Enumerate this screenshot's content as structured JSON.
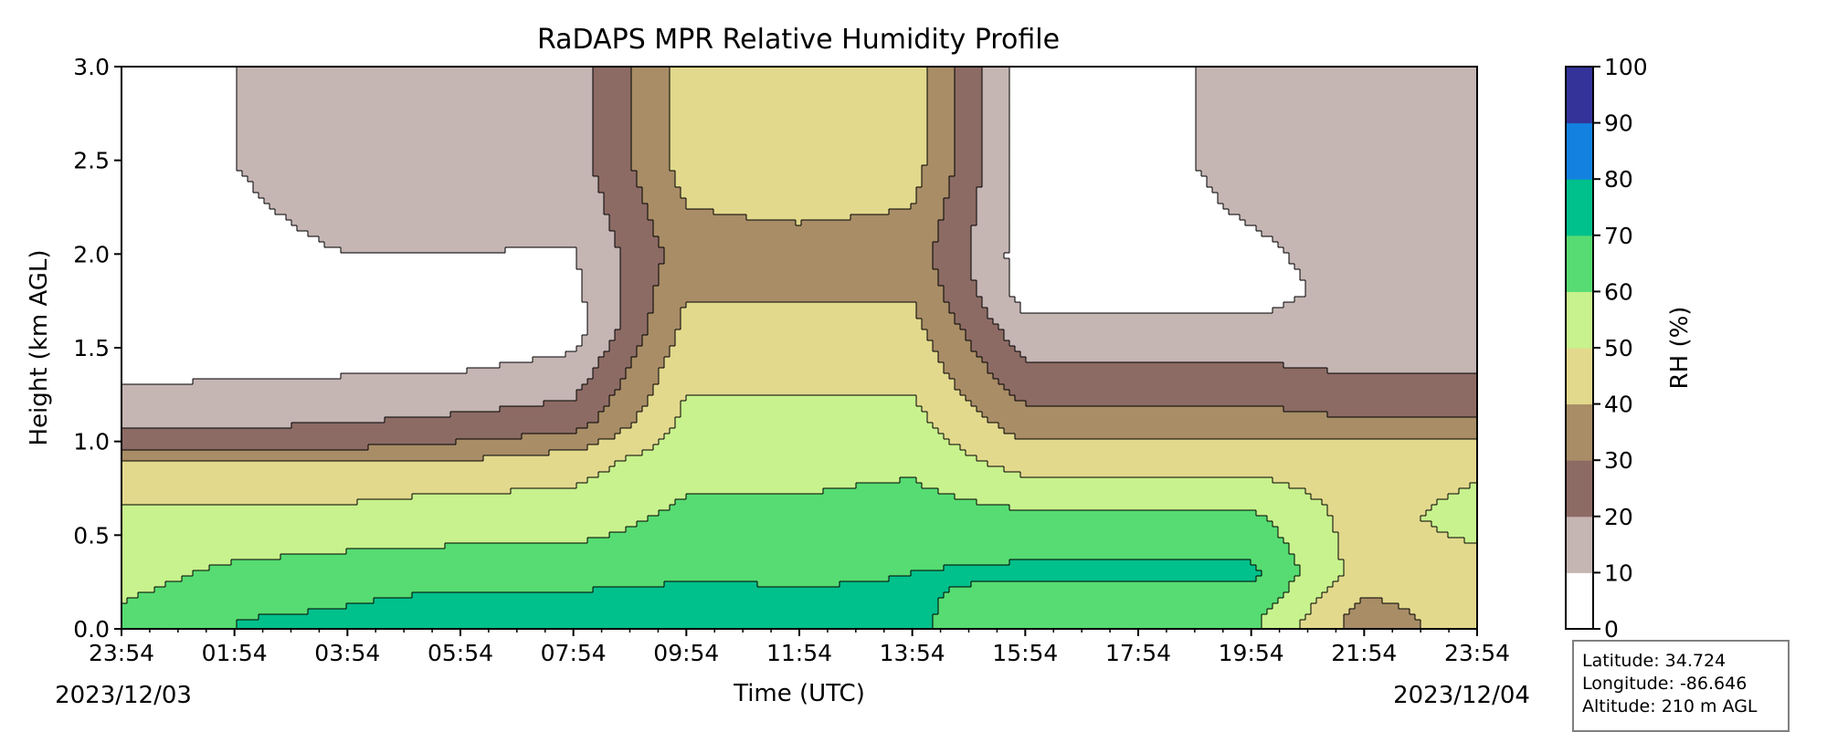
{
  "chart_data": {
    "type": "filled-contour",
    "title": "RaDAPS MPR Relative Humidity Profile",
    "xlabel": "Time (UTC)",
    "ylabel": "Height (km AGL)",
    "x_tick_labels": [
      "23:54",
      "01:54",
      "03:54",
      "05:54",
      "07:54",
      "09:54",
      "11:54",
      "13:54",
      "15:54",
      "17:54",
      "19:54",
      "21:54",
      "23:54"
    ],
    "x_start_date": "2023/12/03",
    "x_end_date": "2023/12/04",
    "ylim": [
      0.0,
      3.0
    ],
    "y_ticks": [
      "0.0",
      "0.5",
      "1.0",
      "1.5",
      "2.0",
      "2.5",
      "3.0"
    ],
    "colorbar": {
      "label": "RH (%)",
      "levels": [
        0,
        10,
        20,
        30,
        40,
        50,
        60,
        70,
        80,
        90,
        100
      ],
      "colors": [
        "#ffffff",
        "#c5b5b3",
        "#8c6b64",
        "#a88d66",
        "#e2d98d",
        "#c8f28d",
        "#56dc72",
        "#00c08b",
        "#1281e0",
        "#343399"
      ]
    },
    "rh_fields": [
      {
        "time": "23:54",
        "heights_km": [
          0.05,
          0.3,
          0.6,
          0.85,
          0.93,
          1.0,
          1.12,
          1.5,
          2.5
        ],
        "rh": [
          62,
          56,
          52,
          45,
          35,
          25,
          15,
          5,
          5
        ]
      },
      {
        "time": "01:54",
        "heights_km": [
          0.05,
          0.3,
          0.6,
          0.85,
          0.93,
          1.0,
          1.15,
          1.5,
          2.5
        ],
        "rh": [
          70,
          62,
          52,
          45,
          35,
          25,
          15,
          5,
          10
        ]
      },
      {
        "time": "03:54",
        "heights_km": [
          0.05,
          0.3,
          0.6,
          0.85,
          0.93,
          1.0,
          1.2,
          1.5,
          2.5
        ],
        "rh": [
          72,
          65,
          52,
          45,
          35,
          25,
          15,
          5,
          15
        ]
      },
      {
        "time": "05:54",
        "heights_km": [
          0.05,
          0.3,
          0.6,
          0.85,
          0.95,
          1.05,
          1.25,
          1.5,
          2.5
        ],
        "rh": [
          78,
          65,
          55,
          45,
          35,
          25,
          15,
          5,
          15
        ]
      },
      {
        "time": "07:54",
        "heights_km": [
          0.05,
          0.3,
          0.6,
          0.9,
          1.0,
          1.1,
          1.35,
          1.6,
          2.5
        ],
        "rh": [
          78,
          65,
          55,
          45,
          35,
          25,
          15,
          5,
          15
        ]
      },
      {
        "time": "09:54",
        "heights_km": [
          0.05,
          0.3,
          0.6,
          1.0,
          1.5,
          2.0,
          2.5
        ],
        "rh": [
          78,
          68,
          62,
          55,
          45,
          35,
          45
        ]
      },
      {
        "time": "11:54",
        "heights_km": [
          0.05,
          0.3,
          0.6,
          1.0,
          1.5,
          2.0,
          2.5
        ],
        "rh": [
          75,
          68,
          62,
          55,
          45,
          35,
          50
        ]
      },
      {
        "time": "13:54",
        "heights_km": [
          0.05,
          0.3,
          0.6,
          1.0,
          1.5,
          2.0,
          2.5
        ],
        "rh": [
          72,
          70,
          65,
          55,
          45,
          35,
          45
        ]
      },
      {
        "time": "15:54",
        "heights_km": [
          0.05,
          0.3,
          0.6,
          0.9,
          1.1,
          1.3,
          1.8,
          2.5
        ],
        "rh": [
          62,
          72,
          62,
          45,
          35,
          25,
          5,
          5
        ]
      },
      {
        "time": "17:54",
        "heights_km": [
          0.05,
          0.3,
          0.6,
          0.9,
          1.1,
          1.3,
          1.8,
          2.5
        ],
        "rh": [
          62,
          72,
          62,
          45,
          35,
          25,
          5,
          5
        ]
      },
      {
        "time": "19:54",
        "heights_km": [
          0.05,
          0.3,
          0.6,
          0.9,
          1.1,
          1.3,
          1.8,
          2.5
        ],
        "rh": [
          62,
          72,
          62,
          45,
          35,
          25,
          5,
          15
        ]
      },
      {
        "time": "21:54",
        "heights_km": [
          0.05,
          0.3,
          0.6,
          0.95,
          1.05,
          1.2,
          1.5,
          2.5
        ],
        "rh": [
          35,
          45,
          45,
          45,
          35,
          25,
          15,
          15
        ]
      },
      {
        "time": "23:54",
        "heights_km": [
          0.05,
          0.3,
          0.6,
          0.95,
          1.05,
          1.2,
          1.5,
          2.5
        ],
        "rh": [
          45,
          45,
          55,
          45,
          35,
          25,
          15,
          15
        ]
      }
    ]
  },
  "info": {
    "latitude": "Latitude: 34.724",
    "longitude": "Longitude: -86.646",
    "altitude": "Altitude: 210 m AGL"
  }
}
